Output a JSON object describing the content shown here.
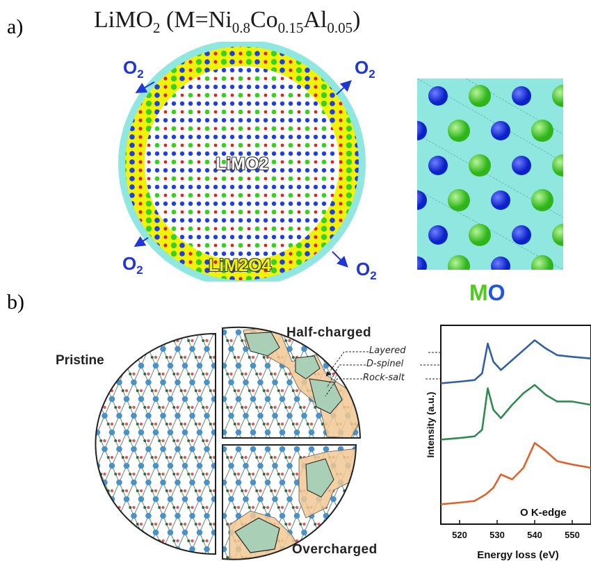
{
  "panel_a": {
    "label": "a)",
    "title": {
      "prefix": "LiMO",
      "sub1": "2",
      "mid": " (M=Ni",
      "sub_ni": "0.8",
      "co": "Co",
      "sub_co": "0.15",
      "al": "Al",
      "sub_al": "0.05",
      "suffix": ")"
    },
    "o2": {
      "text": "O",
      "sub": "2"
    },
    "core_label": "LiMO2",
    "shell_label": "LiM2O4",
    "mo_label": {
      "m": "M",
      "o": "O"
    },
    "colors": {
      "surface": "#8fe7df",
      "spinel": "#f1f20a",
      "m_atom": "#36d21e",
      "o_atom": "#1f3fe0",
      "li_atom": "#e02020"
    }
  },
  "panel_b": {
    "label": "b)",
    "pristine": "Pristine",
    "half_charged": "Half-charged",
    "overcharged": "Overcharged",
    "phases": [
      "Layered",
      "D-spinel",
      "Rock-salt"
    ],
    "spectrum": {
      "ylabel": "Intensity (a.u.)",
      "xlabel": "Energy loss (eV)",
      "edge_label": "O K-edge",
      "xticks": [
        "520",
        "530",
        "540",
        "550"
      ]
    }
  },
  "chart_data": {
    "type": "line",
    "xlabel": "Energy loss (eV)",
    "ylabel": "Intensity (a.u.)",
    "xlim": [
      515,
      555
    ],
    "annotation": "O K-edge",
    "series": [
      {
        "x": [
          515,
          520,
          524,
          526,
          527.5,
          529,
          531,
          534,
          537,
          540,
          543,
          546,
          550,
          555
        ],
        "values": [
          4.25,
          4.3,
          4.35,
          4.55,
          5.45,
          4.9,
          4.65,
          4.95,
          5.25,
          5.55,
          5.3,
          5.1,
          5.05,
          5.0
        ]
      },
      {
        "x": [
          515,
          520,
          524,
          526,
          527.5,
          529,
          531,
          534,
          537,
          540,
          543,
          546,
          550,
          555
        ],
        "values": [
          2.55,
          2.6,
          2.65,
          2.85,
          4.1,
          3.45,
          3.2,
          3.6,
          3.95,
          4.2,
          3.9,
          3.7,
          3.7,
          3.6
        ]
      },
      {
        "x": [
          515,
          520,
          524,
          527,
          529,
          531,
          534,
          537,
          540,
          543,
          546,
          550,
          555
        ],
        "values": [
          0.6,
          0.65,
          0.7,
          0.9,
          1.1,
          1.5,
          1.35,
          1.7,
          2.45,
          2.2,
          1.9,
          1.8,
          1.7
        ]
      }
    ],
    "series_colors": [
      "#2f5fa6",
      "#2e8b4e",
      "#e0622b"
    ]
  }
}
